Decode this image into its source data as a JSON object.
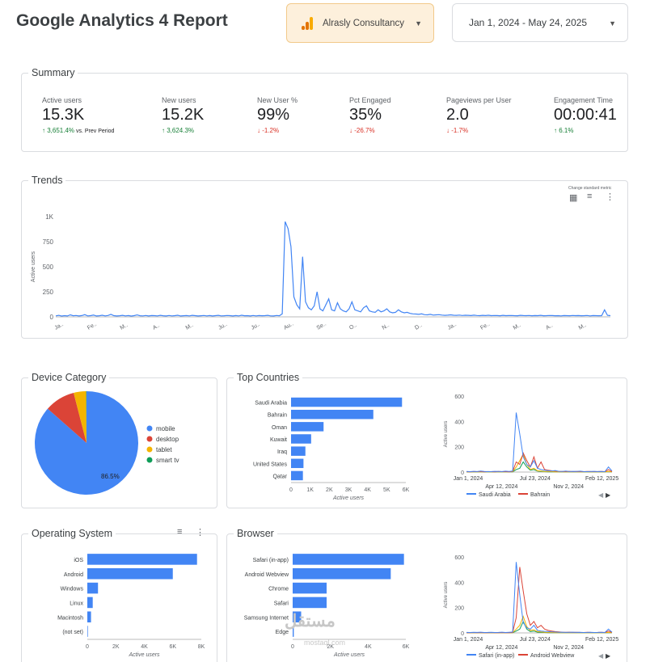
{
  "header": {
    "title": "Google Analytics 4 Report",
    "account": "Alrasly Consultancy",
    "date_range": "Jan 1, 2024 - May 24, 2025",
    "brand_color": "#f9ab00"
  },
  "summary": {
    "title": "Summary",
    "kpis": [
      {
        "label": "Active users",
        "value": "15.3K",
        "delta": "3,651.4%",
        "dir": "up",
        "note": "vs. Prev Period"
      },
      {
        "label": "New users",
        "value": "15.2K",
        "delta": "3,624.3%",
        "dir": "up",
        "note": ""
      },
      {
        "label": "New User %",
        "value": "99%",
        "delta": "-1.2%",
        "dir": "down",
        "note": ""
      },
      {
        "label": "Pct Engaged",
        "value": "35%",
        "delta": "-26.7%",
        "dir": "down",
        "note": ""
      },
      {
        "label": "Pageviews per User",
        "value": "2.0",
        "delta": "-1.7%",
        "dir": "down",
        "note": ""
      },
      {
        "label": "Engagement Time",
        "value": "00:00:41",
        "delta": "6.1%",
        "dir": "up",
        "note": ""
      }
    ]
  },
  "trends": {
    "title": "Trends",
    "menu_note": "Change standard metric",
    "icons": [
      "chart-icon",
      "filter-icon",
      "more-vert-icon"
    ]
  },
  "device": {
    "title": "Device Category"
  },
  "countries": {
    "title": "Top Countries"
  },
  "os": {
    "title": "Operating System"
  },
  "browser": {
    "title": "Browser"
  },
  "watermark": {
    "text": "مستقل",
    "sub": "mostaql.com"
  },
  "chart_data": [
    {
      "id": "trends",
      "type": "line",
      "ylabel": "Active users",
      "yticks": [
        "0",
        "250",
        "500",
        "750",
        "1K"
      ],
      "ylim": [
        0,
        1000
      ],
      "xticks": [
        "Ja..",
        "Fe..",
        "M..",
        "A..",
        "M..",
        "Ju..",
        "Ju..",
        "Au..",
        "Se..",
        "O..",
        "N..",
        "D..",
        "Ja..",
        "Fe..",
        "M..",
        "A..",
        "M.."
      ],
      "series": [
        {
          "color": "#4285f4",
          "values": [
            10,
            15,
            8,
            12,
            9,
            20,
            11,
            14,
            9,
            13,
            22,
            10,
            12,
            18,
            9,
            11,
            16,
            10,
            14,
            25,
            12,
            9,
            11,
            15,
            10,
            13,
            8,
            12,
            19,
            11,
            10,
            14,
            9,
            13,
            12,
            10,
            15,
            11,
            9,
            14,
            10,
            12,
            16,
            9,
            11,
            13,
            10,
            15,
            12,
            9,
            11,
            14,
            10,
            13,
            9,
            12,
            15,
            10,
            11,
            14,
            12,
            9,
            13,
            10,
            16,
            11,
            12,
            9,
            14,
            10,
            13,
            11,
            12,
            15,
            10,
            9,
            14,
            11,
            30,
            950,
            880,
            700,
            200,
            120,
            80,
            600,
            150,
            90,
            70,
            110,
            250,
            80,
            60,
            120,
            180,
            70,
            60,
            140,
            80,
            60,
            50,
            80,
            150,
            70,
            60,
            50,
            90,
            110,
            60,
            50,
            45,
            70,
            50,
            60,
            80,
            50,
            40,
            45,
            70,
            50,
            40,
            45,
            35,
            30,
            28,
            25,
            30,
            22,
            20,
            25,
            18,
            20,
            22,
            18,
            15,
            17,
            20,
            16,
            15,
            18,
            14,
            16,
            15,
            13,
            17,
            14,
            12,
            15,
            13,
            16,
            12,
            14,
            13,
            11,
            15,
            12,
            13,
            14,
            12,
            11,
            15,
            13,
            12,
            14,
            11,
            13,
            12,
            15,
            11,
            12,
            14,
            13,
            11,
            12,
            10,
            13,
            12,
            11,
            14,
            12,
            13,
            11,
            12,
            14,
            10,
            13,
            12,
            11,
            12,
            70,
            15,
            12
          ]
        }
      ]
    },
    {
      "id": "device",
      "type": "pie",
      "categories": [
        "mobile",
        "desktop",
        "tablet",
        "smart tv"
      ],
      "values": [
        86.5,
        9.5,
        3.9,
        0.1
      ],
      "colors": [
        "#4285f4",
        "#db4437",
        "#f4b400",
        "#0f9d58"
      ],
      "label": "86.5%"
    },
    {
      "id": "countries",
      "type": "bar",
      "categories": [
        "Saudi Arabia",
        "Bahrain",
        "Oman",
        "Kuwait",
        "Iraq",
        "United States",
        "Qatar"
      ],
      "values": [
        5800,
        4300,
        1700,
        1050,
        750,
        650,
        620
      ],
      "xticks": [
        "0",
        "1K",
        "2K",
        "3K",
        "4K",
        "5K",
        "6K"
      ],
      "xlim": [
        0,
        6000
      ],
      "xlabel": "Active users"
    },
    {
      "id": "countries-trend",
      "type": "line",
      "ylabel": "Active users",
      "yticks": [
        "0",
        "200",
        "400",
        "600"
      ],
      "ylim": [
        0,
        600
      ],
      "xticks": [
        "Jan 1, 2024",
        "Jul 23, 2024",
        "Feb 12, 2025"
      ],
      "xticks2": [
        "Apr 12, 2024",
        "Nov 2, 2024"
      ],
      "series": [
        {
          "name": "Saudi Arabia",
          "color": "#4285f4",
          "values": [
            5,
            3,
            6,
            4,
            8,
            5,
            3,
            4,
            6,
            5,
            4,
            7,
            5,
            8,
            470,
            300,
            120,
            60,
            40,
            90,
            30,
            20,
            15,
            10,
            8,
            12,
            6,
            5,
            8,
            4,
            6,
            5,
            7,
            4,
            3,
            5,
            6,
            4,
            5,
            3,
            40,
            8
          ]
        },
        {
          "name": "Bahrain",
          "color": "#db4437",
          "values": [
            3,
            2,
            4,
            3,
            5,
            2,
            4,
            3,
            2,
            5,
            3,
            4,
            2,
            6,
            80,
            60,
            150,
            90,
            40,
            120,
            30,
            80,
            20,
            15,
            10,
            8,
            6,
            5,
            4,
            6,
            3,
            5,
            4,
            3,
            5,
            4,
            3,
            4,
            5,
            3,
            20,
            4
          ]
        },
        {
          "name": "",
          "color": "#f4b400",
          "values": [
            1,
            1,
            2,
            1,
            2,
            1,
            1,
            2,
            1,
            1,
            2,
            1,
            1,
            3,
            40,
            90,
            140,
            60,
            20,
            30,
            10,
            8,
            5,
            4,
            3,
            2,
            2,
            1,
            2,
            1,
            1,
            2,
            1,
            1,
            2,
            1,
            1,
            2,
            1,
            1,
            5,
            1
          ]
        },
        {
          "name": "",
          "color": "#0f9d58",
          "values": [
            1,
            1,
            1,
            1,
            1,
            1,
            1,
            1,
            1,
            1,
            1,
            1,
            1,
            2,
            20,
            30,
            80,
            40,
            15,
            20,
            8,
            5,
            3,
            2,
            2,
            1,
            1,
            1,
            1,
            1,
            1,
            1,
            1,
            1,
            1,
            1,
            1,
            1,
            1,
            1,
            3,
            1
          ]
        }
      ]
    },
    {
      "id": "os",
      "type": "bar",
      "categories": [
        "iOS",
        "Android",
        "Windows",
        "Linux",
        "Macintosh",
        "(not set)"
      ],
      "values": [
        7700,
        6000,
        750,
        380,
        260,
        40
      ],
      "xticks": [
        "0",
        "2K",
        "4K",
        "6K",
        "8K"
      ],
      "xlim": [
        0,
        8000
      ],
      "xlabel": "Active users"
    },
    {
      "id": "browser",
      "type": "bar",
      "categories": [
        "Safari (in-app)",
        "Android Webview",
        "Chrome",
        "Safari",
        "Samsung Internet",
        "Edge"
      ],
      "values": [
        5900,
        5200,
        1800,
        1800,
        450,
        60
      ],
      "xticks": [
        "0",
        "2K",
        "4K",
        "6K"
      ],
      "xlim": [
        0,
        6000
      ],
      "xlabel": "Active users"
    },
    {
      "id": "browser-trend",
      "type": "line",
      "ylabel": "Active users",
      "yticks": [
        "0",
        "200",
        "400",
        "600"
      ],
      "ylim": [
        0,
        600
      ],
      "xticks": [
        "Jan 1, 2024",
        "Jul 23, 2024",
        "Feb 12, 2025"
      ],
      "xticks2": [
        "Apr 12, 2024",
        "Nov 2, 2024"
      ],
      "series": [
        {
          "name": "Safari (in-app)",
          "color": "#4285f4",
          "values": [
            4,
            3,
            5,
            4,
            6,
            3,
            4,
            5,
            3,
            4,
            6,
            3,
            5,
            7,
            560,
            300,
            80,
            40,
            30,
            60,
            20,
            15,
            12,
            10,
            8,
            7,
            5,
            6,
            4,
            5,
            6,
            4,
            5,
            3,
            4,
            5,
            3,
            4,
            5,
            3,
            30,
            6
          ]
        },
        {
          "name": "Android Webview",
          "color": "#db4437",
          "values": [
            2,
            2,
            3,
            2,
            3,
            2,
            2,
            3,
            2,
            2,
            3,
            2,
            2,
            4,
            120,
            520,
            330,
            150,
            60,
            90,
            40,
            60,
            30,
            20,
            15,
            10,
            8,
            6,
            5,
            6,
            4,
            5,
            4,
            3,
            5,
            4,
            3,
            4,
            5,
            3,
            15,
            4
          ]
        },
        {
          "name": "",
          "color": "#f4b400",
          "values": [
            1,
            1,
            1,
            1,
            2,
            1,
            1,
            1,
            1,
            1,
            2,
            1,
            1,
            2,
            30,
            60,
            130,
            50,
            20,
            25,
            10,
            8,
            5,
            4,
            3,
            2,
            2,
            1,
            2,
            1,
            1,
            2,
            1,
            1,
            2,
            1,
            1,
            2,
            1,
            1,
            4,
            1
          ]
        },
        {
          "name": "",
          "color": "#0f9d58",
          "values": [
            1,
            1,
            1,
            1,
            1,
            1,
            1,
            1,
            1,
            1,
            1,
            1,
            1,
            1,
            15,
            30,
            90,
            30,
            10,
            15,
            6,
            4,
            3,
            2,
            2,
            1,
            1,
            1,
            1,
            1,
            1,
            1,
            1,
            1,
            1,
            1,
            1,
            1,
            1,
            1,
            2,
            1
          ]
        }
      ]
    }
  ]
}
